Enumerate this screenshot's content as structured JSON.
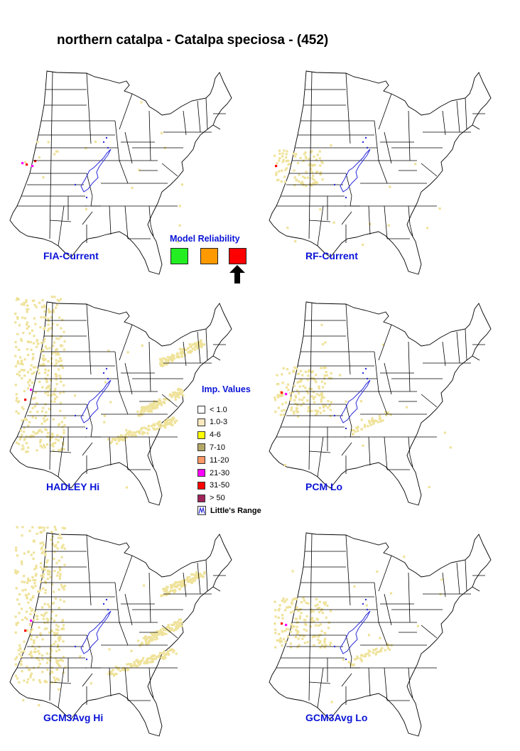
{
  "title": "northern catalpa - Catalpa speciosa - (452)",
  "colors": {
    "label_blue": "#0a14d6",
    "range_outline": "#2a2ad8",
    "importance_low": "#efe29a"
  },
  "panels": [
    {
      "id": "fia-current",
      "label": "FIA-Current",
      "density": "very-low"
    },
    {
      "id": "rf-current",
      "label": "RF-Current",
      "density": "low"
    },
    {
      "id": "hadley-hi",
      "label": "HADLEY Hi",
      "density": "high"
    },
    {
      "id": "pcm-lo",
      "label": "PCM Lo",
      "density": "medium"
    },
    {
      "id": "gcm3avg-hi",
      "label": "GCM3Avg Hi",
      "density": "high"
    },
    {
      "id": "gcm3avg-lo",
      "label": "GCM3Avg Lo",
      "density": "medium"
    }
  ],
  "model_reliability": {
    "title": "Model Reliability",
    "levels": [
      {
        "name": "high",
        "color": "#22ee22"
      },
      {
        "name": "medium",
        "color": "#ff9900"
      },
      {
        "name": "low",
        "color": "#ff0000"
      }
    ],
    "selected": "low",
    "pointer_icon": "up-arrow-icon"
  },
  "importance_legend": {
    "title": "Imp. Values",
    "items": [
      {
        "label": "< 1.0",
        "color": "#ffffff"
      },
      {
        "label": "1.0-3",
        "color": "#fbe8c0"
      },
      {
        "label": "4-6",
        "color": "#ffff00"
      },
      {
        "label": "7-10",
        "color": "#b3a867"
      },
      {
        "label": "11-20",
        "color": "#ff9966"
      },
      {
        "label": "21-30",
        "color": "#ff00ff"
      },
      {
        "label": "31-50",
        "color": "#ff0000"
      },
      {
        "label": "> 50",
        "color": "#a0235a"
      },
      {
        "label": "Little's Range",
        "color": "#2a2ad8",
        "icon": "range-outline-icon"
      }
    ]
  }
}
